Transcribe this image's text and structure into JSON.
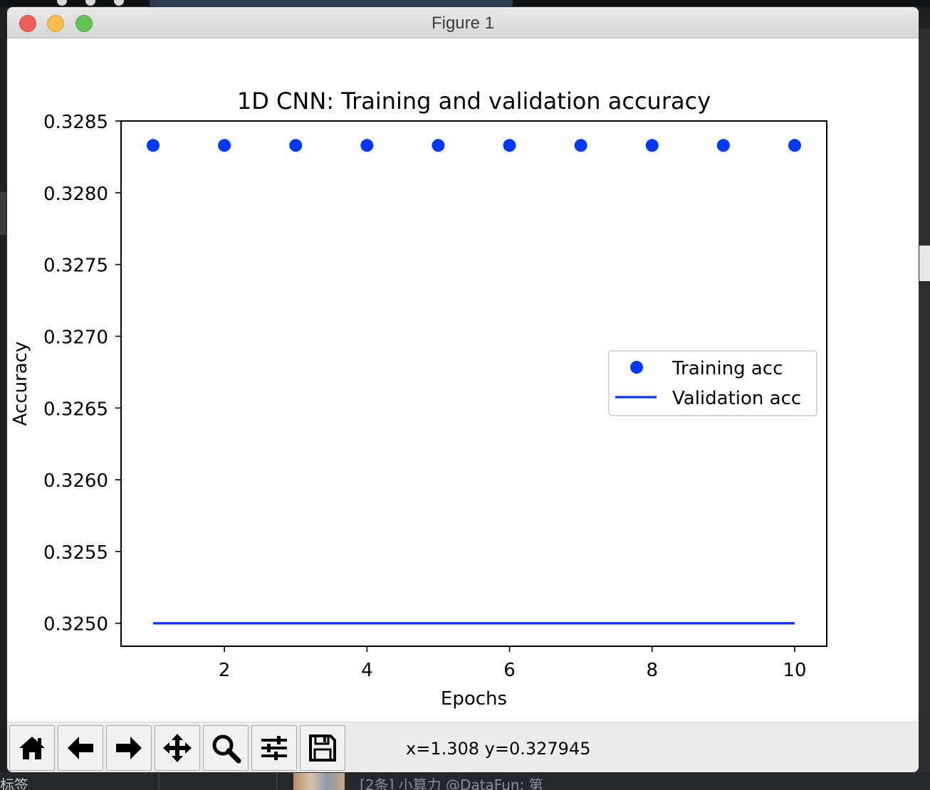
{
  "window": {
    "title": "Figure 1"
  },
  "toolbar": {
    "buttons": [
      {
        "name": "home-button",
        "icon": "home-icon"
      },
      {
        "name": "back-button",
        "icon": "arrow-left-icon"
      },
      {
        "name": "forward-button",
        "icon": "arrow-right-icon"
      },
      {
        "name": "pan-button",
        "icon": "move-arrows-icon"
      },
      {
        "name": "zoom-button",
        "icon": "magnifier-icon"
      },
      {
        "name": "configure-subplots-button",
        "icon": "sliders-icon"
      },
      {
        "name": "save-button",
        "icon": "floppy-disk-icon"
      }
    ],
    "coords": "x=1.308 y=0.327945"
  },
  "desktop": {
    "bottom_label": "标签",
    "bottom_news": "[2条] 小算力 @DataFun: 第"
  },
  "chart_data": {
    "type": "line",
    "title": "1D CNN: Training and validation accuracy",
    "xlabel": "Epochs",
    "ylabel": "Accuracy",
    "x": [
      1,
      2,
      3,
      4,
      5,
      6,
      7,
      8,
      9,
      10
    ],
    "xlim": [
      0.55,
      10.45
    ],
    "ylim": [
      0.32484,
      0.3285
    ],
    "xticks": [
      2,
      4,
      6,
      8,
      10
    ],
    "yticks": [
      0.325,
      0.3255,
      0.326,
      0.3265,
      0.327,
      0.3275,
      0.328,
      0.3285
    ],
    "ytick_labels": [
      "0.3250",
      "0.3255",
      "0.3260",
      "0.3265",
      "0.3270",
      "0.3275",
      "0.3280",
      "0.3285"
    ],
    "grid": false,
    "legend_position": "center-right",
    "series": [
      {
        "name": "Training acc",
        "style": "markers",
        "color": "#0038ff",
        "values": [
          0.32833,
          0.32833,
          0.32833,
          0.32833,
          0.32833,
          0.32833,
          0.32833,
          0.32833,
          0.32833,
          0.32833
        ]
      },
      {
        "name": "Validation acc",
        "style": "line",
        "color": "#0038ff",
        "values": [
          0.325,
          0.325,
          0.325,
          0.325,
          0.325,
          0.325,
          0.325,
          0.325,
          0.325,
          0.325
        ]
      }
    ]
  }
}
